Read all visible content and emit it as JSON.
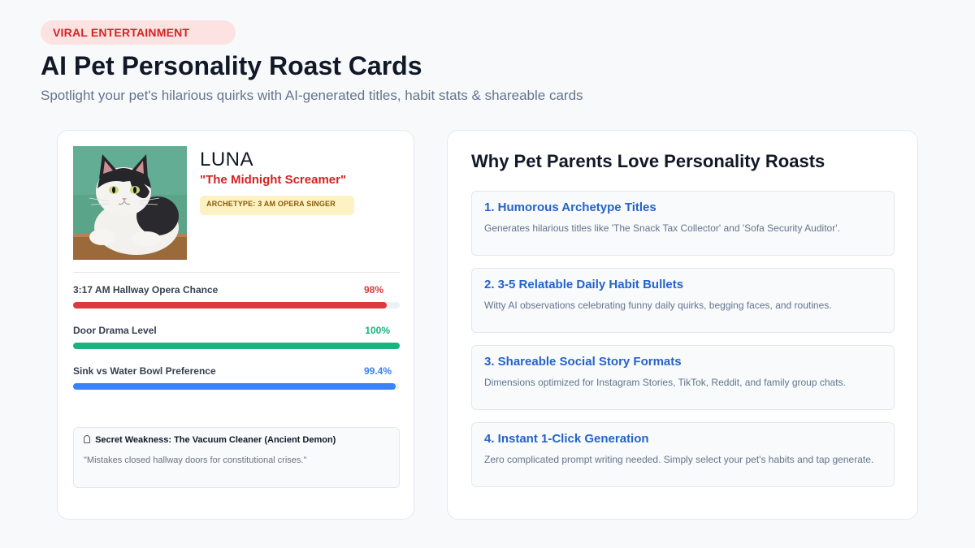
{
  "header": {
    "badge": "VIRAL ENTERTAINMENT",
    "title": "AI Pet Personality Roast Cards",
    "subtitle": "Spotlight your pet's hilarious quirks with AI-generated titles, habit stats & shareable cards"
  },
  "pet_card": {
    "name": "LUNA",
    "title": "\"The Midnight Screamer\"",
    "archetype": "ARCHETYPE: 3 AM OPERA SINGER",
    "stats": [
      {
        "label": "3:17 AM Hallway Opera Chance",
        "value": "98%",
        "fraction": 0.98,
        "color": "#e0393d"
      },
      {
        "label": "Door Drama Level",
        "value": "100%",
        "fraction": 1.0,
        "color": "#16b57f"
      },
      {
        "label": "Sink vs Water Bowl Preference",
        "value": "99.4%",
        "fraction": 0.994,
        "color": "#3b82f6"
      }
    ],
    "weakness_icon": "ghost-icon",
    "weakness_title": "Secret Weakness: The Vacuum Cleaner (Ancient Demon)",
    "weakness_quote": "\"Mistakes closed hallway doors for constitutional crises.\""
  },
  "why": {
    "title": "Why Pet Parents Love Personality Roasts",
    "features": [
      {
        "title": "1. Humorous Archetype Titles",
        "desc": "Generates hilarious titles like 'The Snack Tax Collector' and 'Sofa Security Auditor'."
      },
      {
        "title": "2. 3-5 Relatable Daily Habit Bullets",
        "desc": "Witty AI observations celebrating funny daily quirks, begging faces, and routines."
      },
      {
        "title": "3. Shareable Social Story Formats",
        "desc": "Dimensions optimized for Instagram Stories, TikTok, Reddit, and family group chats."
      },
      {
        "title": "4. Instant 1-Click Generation",
        "desc": "Zero complicated prompt writing needed. Simply select your pet's habits and tap generate."
      }
    ]
  },
  "colors": {
    "accent_red": "#d32323",
    "accent_blue": "#2563c9",
    "badge_bg": "#fde2e2"
  }
}
